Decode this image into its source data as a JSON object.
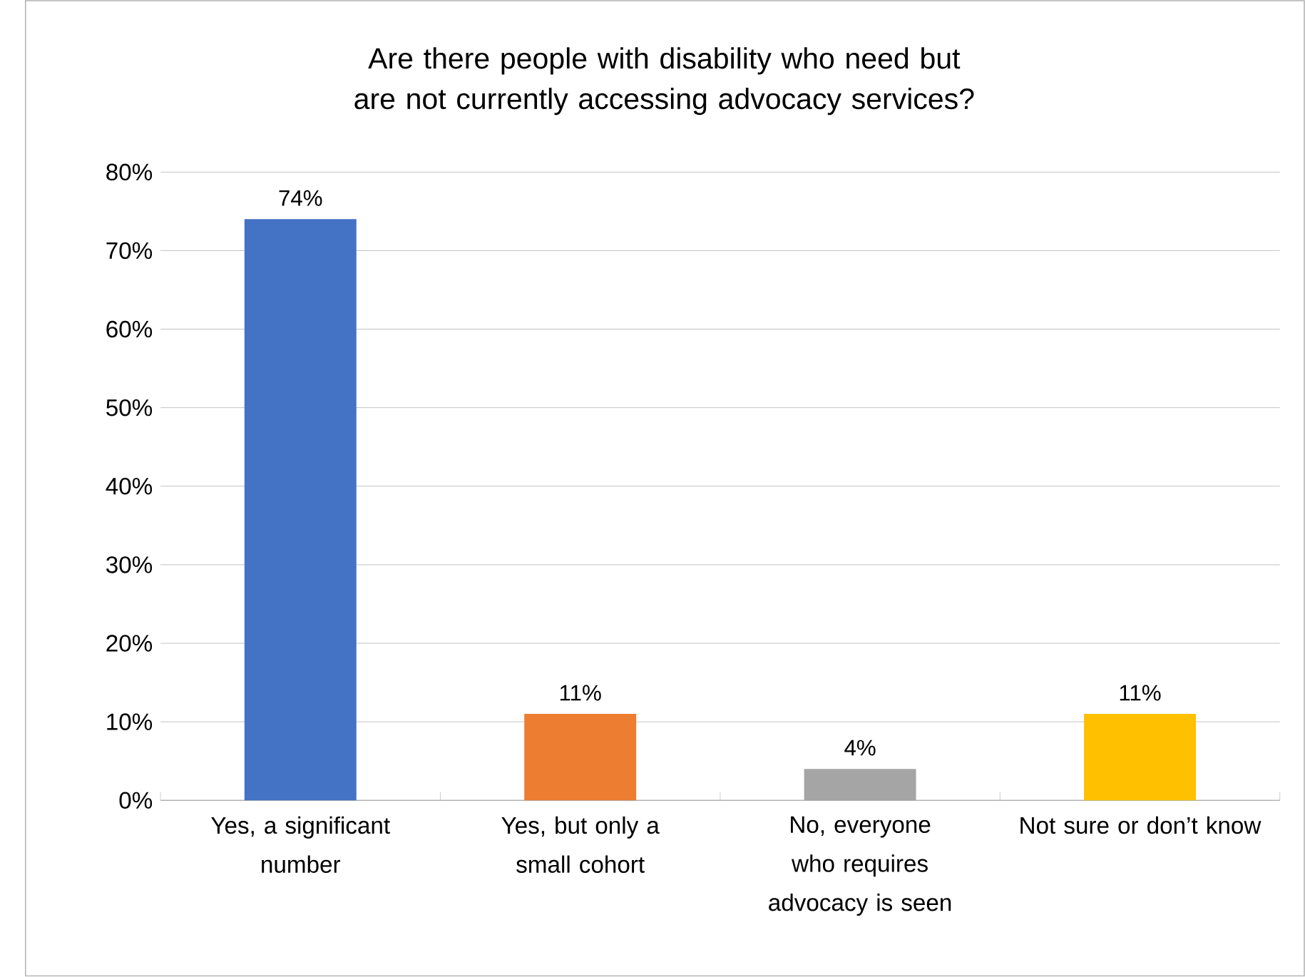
{
  "chart_data": {
    "type": "bar",
    "title": "Are there people with disability who need but are not currently accessing advocacy services?",
    "categories": [
      "Yes, a significant number",
      "Yes, but only a small cohort",
      "No, everyone who requires advocacy is seen",
      "Not sure or don’t know"
    ],
    "values": [
      74,
      11,
      4,
      11
    ],
    "colors": [
      "#4472c4",
      "#ed7d31",
      "#a5a5a5",
      "#ffc000"
    ],
    "value_labels": [
      "74%",
      "11%",
      "4%",
      "11%"
    ],
    "ylim": [
      0,
      80
    ],
    "yticks": [
      {
        "value": 0,
        "label": "0%"
      },
      {
        "value": 10,
        "label": "10%"
      },
      {
        "value": 20,
        "label": "20%"
      },
      {
        "value": 30,
        "label": "30%"
      },
      {
        "value": 40,
        "label": "40%"
      },
      {
        "value": 50,
        "label": "50%"
      },
      {
        "value": 60,
        "label": "60%"
      },
      {
        "value": 70,
        "label": "70%"
      },
      {
        "value": 80,
        "label": "80%"
      }
    ],
    "grid": "y"
  }
}
